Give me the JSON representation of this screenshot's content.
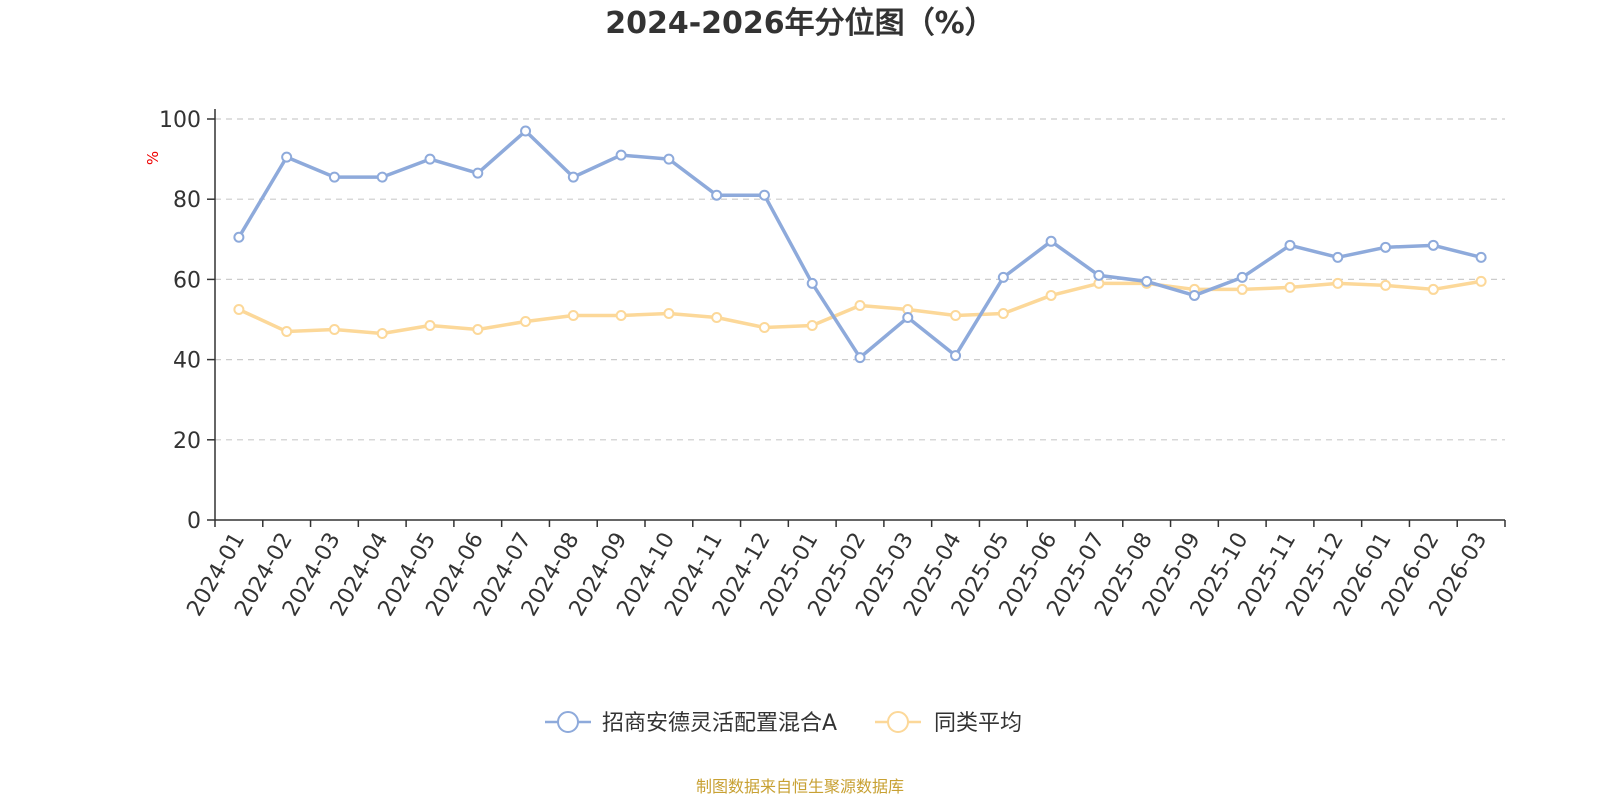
{
  "chart_data": {
    "type": "line",
    "title": "2024-2026年分位图（%）",
    "ylabel": "%",
    "ylim": [
      0,
      100
    ],
    "yticks": [
      0,
      20,
      40,
      60,
      80,
      100
    ],
    "grid": "horizontal dashed",
    "legend_position": "bottom-center",
    "categories": [
      "2024-01",
      "2024-02",
      "2024-03",
      "2024-04",
      "2024-05",
      "2024-06",
      "2024-07",
      "2024-08",
      "2024-09",
      "2024-10",
      "2024-11",
      "2024-12",
      "2025-01",
      "2025-02",
      "2025-03",
      "2025-04",
      "2025-05",
      "2025-06",
      "2025-07",
      "2025-08",
      "2025-09",
      "2025-10",
      "2025-11",
      "2025-12",
      "2026-01",
      "2026-02",
      "2026-03"
    ],
    "series": [
      {
        "name": "招商安德灵活配置混合A",
        "color": "#8eaadb",
        "values": [
          70.5,
          90.5,
          85.5,
          85.5,
          90,
          86.5,
          97,
          85.5,
          91,
          90,
          81,
          81,
          59,
          40.5,
          50.5,
          41,
          60.5,
          69.5,
          61,
          59.5,
          56,
          60.5,
          68.5,
          65.5,
          68,
          68.5,
          65.5
        ]
      },
      {
        "name": "同类平均",
        "color": "#fcd899",
        "values": [
          52.5,
          47,
          47.5,
          46.5,
          48.5,
          47.5,
          49.5,
          51,
          51,
          51.5,
          50.5,
          48,
          48.5,
          53.5,
          52.5,
          51,
          51.5,
          56,
          59,
          59,
          57.5,
          57.5,
          58,
          59,
          58.5,
          57.5,
          59.5
        ]
      }
    ],
    "ylabel_color": "#ee0000"
  },
  "source_text": "制图数据来自恒生聚源数据库",
  "source_color": "#c8a133"
}
